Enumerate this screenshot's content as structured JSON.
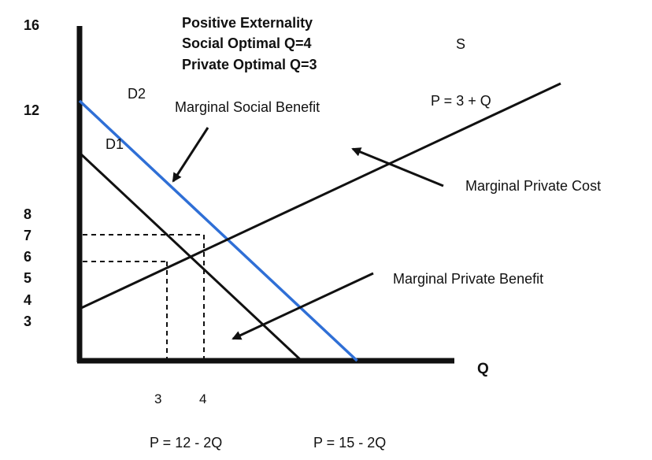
{
  "chart_data": {
    "type": "line",
    "title_lines": [
      "Positive Externality",
      "Social Optimal Q=4",
      "Private Optimal Q=3"
    ],
    "xlabel": "Q",
    "y_tick_labels": [
      "16",
      "12",
      "8",
      "7",
      "6",
      "5",
      "4",
      "3"
    ],
    "x_tick_labels": [
      "3",
      "4"
    ],
    "series": [
      {
        "name": "D1",
        "equation": "P = 12 - 2Q",
        "color": "#111111",
        "x": [
          0,
          6
        ],
        "y": [
          12,
          0
        ]
      },
      {
        "name": "D2",
        "equation": "P = 15 - 2Q",
        "color": "#2f6fd6",
        "x": [
          0,
          7.5
        ],
        "y": [
          15,
          0
        ]
      },
      {
        "name": "S",
        "equation": "P = 3 + Q",
        "color": "#111111",
        "x": [
          0,
          13
        ],
        "y": [
          3,
          16
        ]
      }
    ],
    "reference_points": [
      {
        "x": 3,
        "y": 6,
        "label": "Private Optimal"
      },
      {
        "x": 4,
        "y": 7,
        "label": "Social Optimal"
      }
    ],
    "annotations": [
      "Marginal Social Benefit",
      "Marginal Private Cost",
      "Marginal Private Benefit"
    ],
    "grid": false
  },
  "colors": {
    "axis": "#111111",
    "d2": "#2f6fd6",
    "line": "#111111"
  }
}
